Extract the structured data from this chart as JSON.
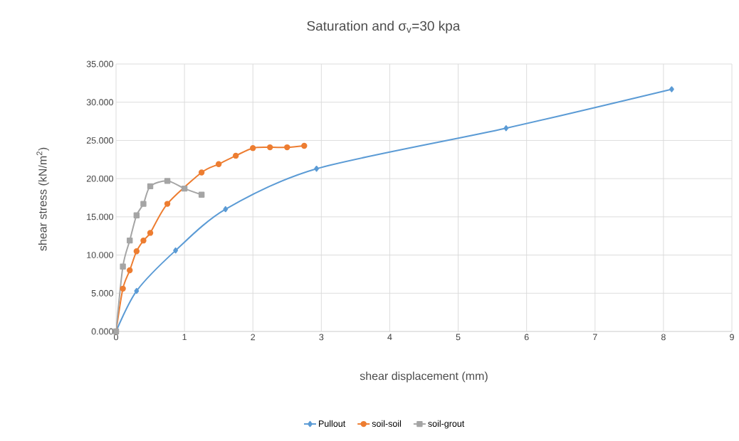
{
  "chart_data": {
    "type": "line",
    "title": "Saturation and σ$_{v}$=30 kpa",
    "xlabel": "shear displacement (mm)",
    "ylabel": "shear stress (kN/m$^{2}$)",
    "xlim": [
      0,
      9
    ],
    "xticks": [
      0,
      1,
      2,
      3,
      4,
      5,
      6,
      7,
      8,
      9
    ],
    "ylim": [
      0,
      35
    ],
    "yticks": [
      {
        "value": 0,
        "label": "0.000"
      },
      {
        "value": 5,
        "label": "5.000"
      },
      {
        "value": 10,
        "label": "10.000"
      },
      {
        "value": 15,
        "label": "15.000"
      },
      {
        "value": 20,
        "label": "20.000"
      },
      {
        "value": 25,
        "label": "25.000"
      },
      {
        "value": 30,
        "label": "30.000"
      },
      {
        "value": 35,
        "label": "35.000"
      }
    ],
    "grid": true,
    "legend": "bottom",
    "line_style": "solid",
    "series": [
      {
        "name": "Pullout",
        "color": "#5b9bd5",
        "marker": "diamond",
        "x": [
          0,
          0.3,
          0.87,
          1.6,
          2.93,
          5.7,
          8.12
        ],
        "values": [
          0,
          5.3,
          10.6,
          16.0,
          21.3,
          26.6,
          31.7
        ]
      },
      {
        "name": "soil-soil",
        "color": "#ed7d31",
        "marker": "circle",
        "x": [
          0,
          0.1,
          0.2,
          0.3,
          0.4,
          0.5,
          0.75,
          1.25,
          1.5,
          1.75,
          2.0,
          2.25,
          2.5,
          2.75
        ],
        "values": [
          0,
          5.6,
          8.0,
          10.5,
          11.9,
          12.9,
          16.7,
          20.8,
          21.9,
          23.0,
          24.0,
          24.1,
          24.1,
          24.3
        ]
      },
      {
        "name": "soil-grout",
        "color": "#a5a5a5",
        "marker": "square",
        "x": [
          0,
          0.1,
          0.2,
          0.3,
          0.4,
          0.5,
          0.75,
          1.0,
          1.25
        ],
        "values": [
          0,
          8.5,
          11.9,
          15.2,
          16.7,
          19.0,
          19.7,
          18.7,
          17.9
        ]
      }
    ]
  }
}
